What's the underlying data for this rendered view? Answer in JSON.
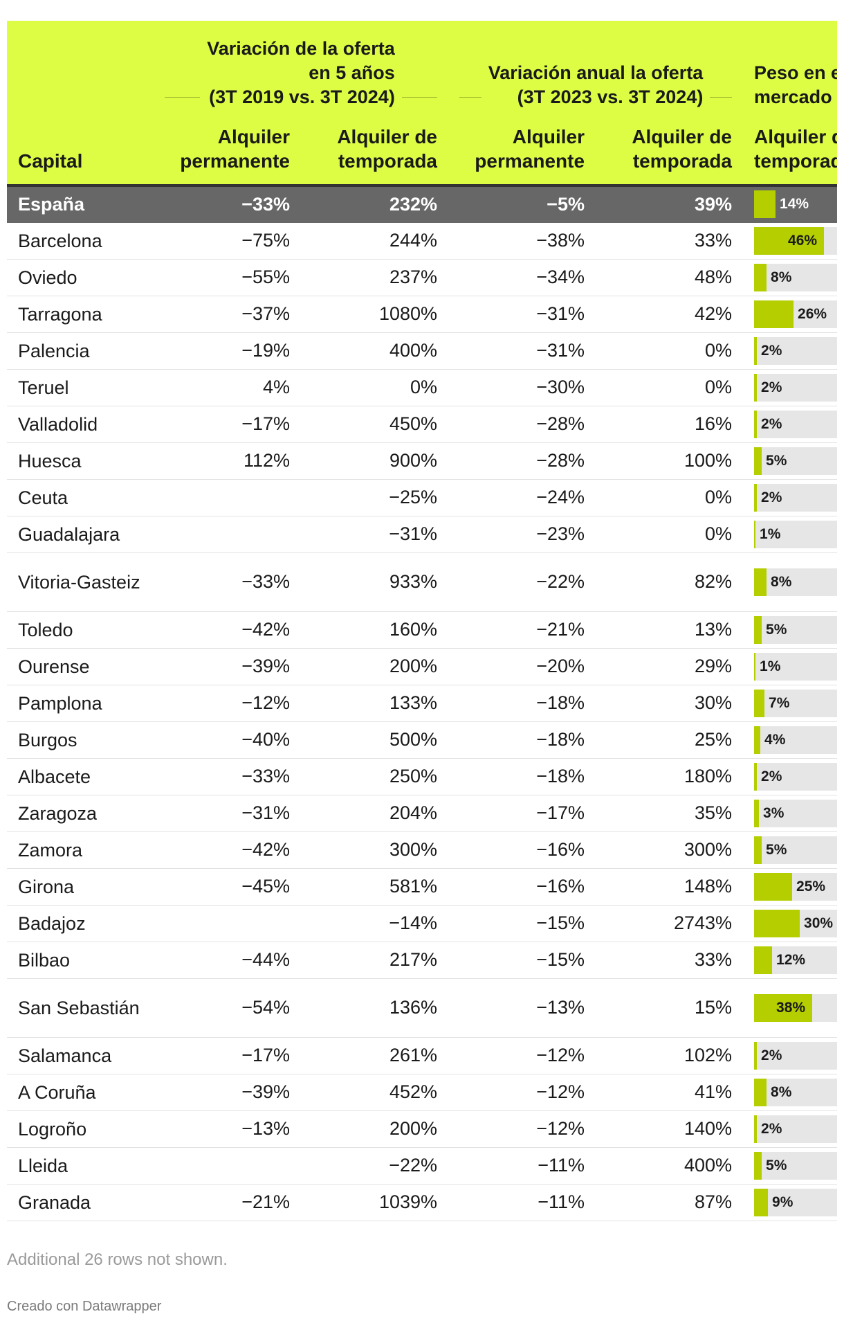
{
  "header": {
    "group1": "Variación de la oferta en 5 años (3T 2019 vs. 3T 2024)",
    "group1_lines": [
      "Variación de la oferta",
      "en 5 años",
      "(3T 2019 vs. 3T 2024)"
    ],
    "group2_lines": [
      "Variación anual la oferta",
      "(3T 2023 vs. 3T 2024)"
    ],
    "group3_lines": [
      "Peso en el",
      "mercado"
    ],
    "capital": "Capital",
    "perm": [
      "Alquiler",
      "permanente"
    ],
    "temp": [
      "Alquiler de",
      "temporada"
    ],
    "bar": [
      "Alquiler de",
      "temporada"
    ]
  },
  "colors": {
    "header_bg": "#ddfd45",
    "highlight_row": "#676767",
    "bar_fill": "#b4ce00",
    "bar_bg": "#e6e6e6"
  },
  "chart_data": {
    "type": "table",
    "columns": [
      "Capital",
      "Alquiler permanente (5 años)",
      "Alquiler de temporada (5 años)",
      "Alquiler permanente (anual)",
      "Alquiler de temporada (anual)",
      "Peso en el mercado - Alquiler de temporada"
    ],
    "rows": [
      {
        "capital": "España",
        "p5": "−33%",
        "t5": "232%",
        "p1": "−5%",
        "t1": "39%",
        "share": 14,
        "share_label": "14%",
        "highlight": true
      },
      {
        "capital": "Barcelona",
        "p5": "−75%",
        "t5": "244%",
        "p1": "−38%",
        "t1": "33%",
        "share": 46,
        "share_label": "46%"
      },
      {
        "capital": "Oviedo",
        "p5": "−55%",
        "t5": "237%",
        "p1": "−34%",
        "t1": "48%",
        "share": 8,
        "share_label": "8%"
      },
      {
        "capital": "Tarragona",
        "p5": "−37%",
        "t5": "1080%",
        "p1": "−31%",
        "t1": "42%",
        "share": 26,
        "share_label": "26%"
      },
      {
        "capital": "Palencia",
        "p5": "−19%",
        "t5": "400%",
        "p1": "−31%",
        "t1": "0%",
        "share": 2,
        "share_label": "2%"
      },
      {
        "capital": "Teruel",
        "p5": "4%",
        "t5": "0%",
        "p1": "−30%",
        "t1": "0%",
        "share": 2,
        "share_label": "2%"
      },
      {
        "capital": "Valladolid",
        "p5": "−17%",
        "t5": "450%",
        "p1": "−28%",
        "t1": "16%",
        "share": 2,
        "share_label": "2%"
      },
      {
        "capital": "Huesca",
        "p5": "112%",
        "t5": "900%",
        "p1": "−28%",
        "t1": "100%",
        "share": 5,
        "share_label": "5%"
      },
      {
        "capital": "Ceuta",
        "p5": "",
        "t5": "−25%",
        "p1": "−24%",
        "t1": "0%",
        "share": 2,
        "share_label": "2%"
      },
      {
        "capital": "Guadalajara",
        "p5": "",
        "t5": "−31%",
        "p1": "−23%",
        "t1": "0%",
        "share": 1,
        "share_label": "1%"
      },
      {
        "capital": "Vitoria-Gasteiz",
        "p5": "−33%",
        "t5": "933%",
        "p1": "−22%",
        "t1": "82%",
        "share": 8,
        "share_label": "8%",
        "tall": true
      },
      {
        "capital": "Toledo",
        "p5": "−42%",
        "t5": "160%",
        "p1": "−21%",
        "t1": "13%",
        "share": 5,
        "share_label": "5%"
      },
      {
        "capital": "Ourense",
        "p5": "−39%",
        "t5": "200%",
        "p1": "−20%",
        "t1": "29%",
        "share": 1,
        "share_label": "1%"
      },
      {
        "capital": "Pamplona",
        "p5": "−12%",
        "t5": "133%",
        "p1": "−18%",
        "t1": "30%",
        "share": 7,
        "share_label": "7%"
      },
      {
        "capital": "Burgos",
        "p5": "−40%",
        "t5": "500%",
        "p1": "−18%",
        "t1": "25%",
        "share": 4,
        "share_label": "4%"
      },
      {
        "capital": "Albacete",
        "p5": "−33%",
        "t5": "250%",
        "p1": "−18%",
        "t1": "180%",
        "share": 2,
        "share_label": "2%"
      },
      {
        "capital": "Zaragoza",
        "p5": "−31%",
        "t5": "204%",
        "p1": "−17%",
        "t1": "35%",
        "share": 3,
        "share_label": "3%"
      },
      {
        "capital": "Zamora",
        "p5": "−42%",
        "t5": "300%",
        "p1": "−16%",
        "t1": "300%",
        "share": 5,
        "share_label": "5%"
      },
      {
        "capital": "Girona",
        "p5": "−45%",
        "t5": "581%",
        "p1": "−16%",
        "t1": "148%",
        "share": 25,
        "share_label": "25%"
      },
      {
        "capital": "Badajoz",
        "p5": "",
        "t5": "−14%",
        "p1": "−15%",
        "t1": "2743%",
        "share": 30,
        "share_label": "30%"
      },
      {
        "capital": "Bilbao",
        "p5": "−44%",
        "t5": "217%",
        "p1": "−15%",
        "t1": "33%",
        "share": 12,
        "share_label": "12%"
      },
      {
        "capital": "San Sebastián",
        "p5": "−54%",
        "t5": "136%",
        "p1": "−13%",
        "t1": "15%",
        "share": 38,
        "share_label": "38%",
        "tall": true
      },
      {
        "capital": "Salamanca",
        "p5": "−17%",
        "t5": "261%",
        "p1": "−12%",
        "t1": "102%",
        "share": 2,
        "share_label": "2%"
      },
      {
        "capital": "A Coruña",
        "p5": "−39%",
        "t5": "452%",
        "p1": "−12%",
        "t1": "41%",
        "share": 8,
        "share_label": "8%"
      },
      {
        "capital": "Logroño",
        "p5": "−13%",
        "t5": "200%",
        "p1": "−12%",
        "t1": "140%",
        "share": 2,
        "share_label": "2%"
      },
      {
        "capital": "Lleida",
        "p5": "",
        "t5": "−22%",
        "p1": "−11%",
        "t1": "400%",
        "share": 5,
        "share_label": "5%"
      },
      {
        "capital": "Granada",
        "p5": "−21%",
        "t5": "1039%",
        "p1": "−11%",
        "t1": "87%",
        "share": 9,
        "share_label": "9%"
      }
    ],
    "bar_max": 100
  },
  "footer": {
    "note": "Additional 26 rows not shown.",
    "credit": "Creado con Datawrapper"
  }
}
